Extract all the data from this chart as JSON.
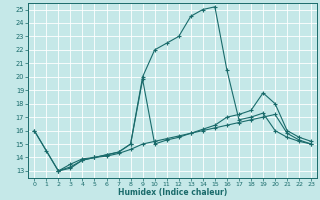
{
  "xlabel": "Humidex (Indice chaleur)",
  "bg_color": "#c5e8e8",
  "grid_color": "#ffffff",
  "line_color": "#1a6b6b",
  "xlim": [
    -0.5,
    23.5
  ],
  "ylim": [
    12.5,
    25.5
  ],
  "xticks": [
    0,
    1,
    2,
    3,
    4,
    5,
    6,
    7,
    8,
    9,
    10,
    11,
    12,
    13,
    14,
    15,
    16,
    17,
    18,
    19,
    20,
    21,
    22,
    23
  ],
  "yticks": [
    13,
    14,
    15,
    16,
    17,
    18,
    19,
    20,
    21,
    22,
    23,
    24,
    25
  ],
  "lines": [
    {
      "x": [
        0,
        1,
        2,
        3,
        4,
        5,
        6,
        7,
        8,
        9,
        10,
        11,
        12,
        13,
        14,
        15,
        16,
        17,
        18,
        19,
        20,
        21,
        22,
        23
      ],
      "y": [
        16,
        14.5,
        13,
        13.2,
        13.8,
        14.0,
        14.2,
        14.4,
        15.0,
        20.0,
        22.0,
        22.5,
        23.0,
        24.5,
        25.0,
        25.2,
        20.5,
        16.8,
        17.0,
        17.3,
        16.0,
        15.5,
        15.2,
        15.0
      ]
    },
    {
      "x": [
        2,
        3,
        4,
        5,
        6,
        7,
        8,
        9,
        10,
        11,
        12,
        13,
        14,
        15,
        16,
        17,
        18,
        19,
        20,
        21,
        22,
        23
      ],
      "y": [
        13.0,
        13.3,
        13.8,
        14.0,
        14.2,
        14.4,
        15.0,
        19.8,
        15.0,
        15.3,
        15.5,
        15.8,
        16.1,
        16.4,
        17.0,
        17.2,
        17.5,
        18.8,
        18.0,
        16.0,
        15.5,
        15.2
      ]
    },
    {
      "x": [
        0,
        2,
        3,
        4,
        5,
        6,
        7,
        8,
        9,
        10,
        11,
        12,
        13,
        14,
        15,
        16,
        17,
        18,
        19,
        20,
        21,
        22,
        23
      ],
      "y": [
        16,
        13.0,
        13.5,
        13.9,
        14.0,
        14.1,
        14.3,
        14.6,
        15.0,
        15.2,
        15.4,
        15.6,
        15.8,
        16.0,
        16.2,
        16.4,
        16.6,
        16.8,
        17.0,
        17.2,
        15.8,
        15.3,
        15.0
      ]
    }
  ]
}
